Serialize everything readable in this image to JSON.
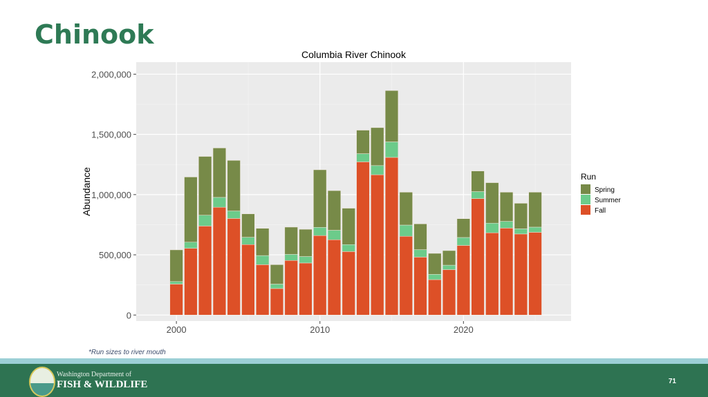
{
  "slide": {
    "title": "Chinook",
    "note": "*Run sizes to river mouth",
    "org_line1": "Washington Department of",
    "org_line2": "FISH & WILDLIFE",
    "page_number": "71"
  },
  "colors": {
    "Spring": "#778a48",
    "Summer": "#6ccb8a",
    "Fall": "#dd5027",
    "panel": "#ebebeb",
    "brand": "#2e7352"
  },
  "chart_data": {
    "type": "bar",
    "stacked": true,
    "title": "Columbia River Chinook",
    "xlabel": "",
    "ylabel": "Abundance",
    "x": [
      2000,
      2001,
      2002,
      2003,
      2004,
      2005,
      2006,
      2007,
      2008,
      2009,
      2010,
      2011,
      2012,
      2013,
      2014,
      2015,
      2016,
      2017,
      2018,
      2019,
      2020,
      2021,
      2022,
      2023,
      2024,
      2025
    ],
    "series": [
      {
        "name": "Fall",
        "values": [
          257000,
          554000,
          739000,
          895000,
          802000,
          585000,
          418000,
          220000,
          453000,
          432000,
          660000,
          625000,
          527000,
          1272000,
          1165000,
          1309000,
          654000,
          481000,
          294000,
          377000,
          578000,
          967000,
          683000,
          722000,
          673000,
          687000
        ]
      },
      {
        "name": "Summer",
        "values": [
          21000,
          51000,
          90000,
          82000,
          62000,
          61000,
          76000,
          37000,
          51000,
          54000,
          68000,
          79000,
          58000,
          68000,
          76000,
          129000,
          93000,
          62000,
          44000,
          37000,
          66000,
          58000,
          80000,
          56000,
          43000,
          43000
        ]
      },
      {
        "name": "Spring",
        "values": [
          263000,
          541000,
          488000,
          410000,
          420000,
          194000,
          226000,
          161000,
          226000,
          226000,
          478000,
          329000,
          302000,
          195000,
          315000,
          426000,
          273000,
          214000,
          174000,
          121000,
          156000,
          171000,
          336000,
          242000,
          212000,
          290000
        ]
      }
    ],
    "ylim": [
      -50000,
      2100000
    ],
    "xlim": [
      1997.2,
      2027.5
    ],
    "yticks": [
      0,
      500000,
      1000000,
      1500000,
      2000000
    ],
    "ytick_labels": [
      "0",
      "500,000",
      "1,000,000",
      "1,500,000",
      "2,000,000"
    ],
    "xticks": [
      2000,
      2010,
      2020
    ],
    "xtick_labels": [
      "2000",
      "2010",
      "2020"
    ],
    "legend": {
      "title": "Run",
      "entries": [
        "Spring",
        "Summer",
        "Fall"
      ],
      "placement": "right"
    },
    "grid": true
  }
}
